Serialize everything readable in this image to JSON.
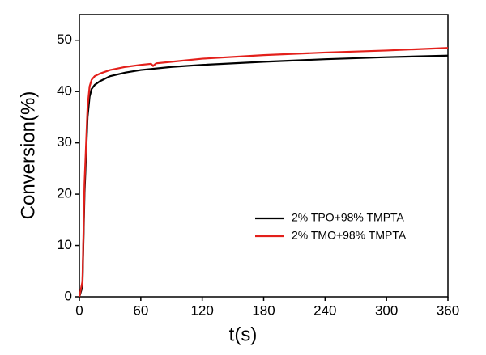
{
  "chart_data": {
    "type": "line",
    "x_label": "t(s)",
    "y_label": "Conversion(%)",
    "xlim": [
      0,
      360
    ],
    "xticks": [
      0,
      60,
      120,
      180,
      240,
      300,
      360
    ],
    "ylim": [
      0,
      55
    ],
    "yticks": [
      0,
      10,
      20,
      30,
      40,
      50
    ],
    "legend": "lower right",
    "series": [
      {
        "name": "2% TPO+98% TMPTA",
        "color": "#000000",
        "x": [
          0,
          3,
          5,
          8,
          10,
          12,
          15,
          20,
          30,
          45,
          60,
          90,
          120,
          180,
          240,
          300,
          360
        ],
        "values": [
          0,
          2,
          20,
          35,
          39,
          40.5,
          41.3,
          42,
          43,
          43.7,
          44.2,
          44.8,
          45.2,
          45.8,
          46.3,
          46.7,
          47
        ]
      },
      {
        "name": "2% TMO+98% TMPTA",
        "color": "#e3201b",
        "x": [
          0,
          3,
          5,
          8,
          10,
          12,
          15,
          20,
          30,
          45,
          60,
          70,
          72,
          75,
          90,
          120,
          180,
          240,
          300,
          360
        ],
        "values": [
          0,
          3,
          22,
          37,
          41,
          42.3,
          43,
          43.5,
          44.2,
          44.8,
          45.2,
          45.4,
          45,
          45.5,
          45.8,
          46.4,
          47.1,
          47.6,
          48,
          48.5
        ]
      }
    ]
  }
}
